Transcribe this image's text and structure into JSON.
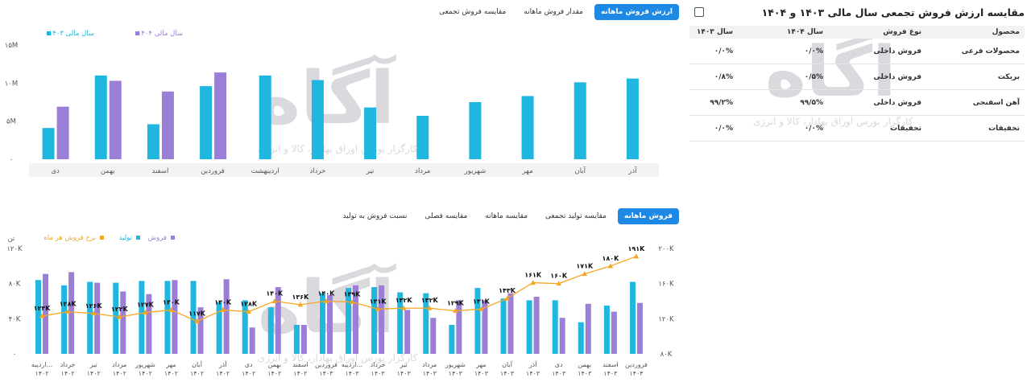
{
  "top_tabs": [
    {
      "label": "ارزش فروش ماهانه",
      "active": true
    },
    {
      "label": "مقدار فروش ماهانه",
      "active": false
    },
    {
      "label": "مقایسه فروش تجمعی",
      "active": false
    }
  ],
  "bottom_tabs": [
    {
      "label": "فروش ماهانه",
      "active": true
    },
    {
      "label": "مقایسه تولید تجمعی",
      "active": false
    },
    {
      "label": "مقایسه ماهانه",
      "active": false
    },
    {
      "label": "مقایسه فصلی",
      "active": false
    },
    {
      "label": "نسبت فروش به تولید",
      "active": false
    }
  ],
  "table": {
    "title": "مقایسه ارزش فروش تجمعی سال مالی ۱۴۰۳ و ۱۴۰۴",
    "headers": [
      "محصول",
      "نوع فروش",
      "سال ۱۴۰۴",
      "سال ۱۴۰۳"
    ],
    "rows": [
      [
        "محصولات فرعی",
        "فروش داخلی",
        "۰/۰%",
        "۰/۰%"
      ],
      [
        "بریکت",
        "فروش داخلی",
        "۰/۵%",
        "۰/۸%"
      ],
      [
        "آهن اسفنجی",
        "فروش داخلی",
        "۹۹/۵%",
        "۹۹/۲%"
      ],
      [
        "تخفیفات",
        "تخفیفات",
        "۰/۰%",
        "۰/۰%"
      ]
    ]
  },
  "watermark": {
    "logo": "آگاه",
    "tagline": "کارگزار بورس اوراق بهادار، کالا و انرژی"
  },
  "colors": {
    "cyan": "#1fb6e0",
    "purple": "#9b7fd6",
    "orange": "#f5a623",
    "active_tab": "#1e88e5"
  },
  "chart_data": [
    {
      "type": "bar",
      "categories": [
        "دی",
        "بهمن",
        "اسفند",
        "فروردین",
        "اردیبهشت",
        "خرداد",
        "تیر",
        "مرداد",
        "شهریور",
        "مهر",
        "آبان",
        "آذر"
      ],
      "series": [
        {
          "name": "سال مالی ۱۴۰۳",
          "color": "#1fb6e0",
          "values": [
            4.1,
            11.0,
            4.6,
            9.6,
            11.0,
            10.4,
            6.8,
            5.7,
            7.5,
            8.3,
            10.1,
            10.6
          ]
        },
        {
          "name": "سال مالی ۱۴۰۴",
          "color": "#9b7fd6",
          "values": [
            6.9,
            10.3,
            8.9,
            11.4,
            null,
            null,
            null,
            null,
            null,
            null,
            null,
            null
          ]
        }
      ],
      "ylim": [
        0,
        15
      ],
      "yticks": [
        "۰",
        "۵M",
        "۱۰M",
        "۱۵M"
      ],
      "grid": false,
      "legend_position": "top-left"
    },
    {
      "type": "bar",
      "categories": [
        {
          "month": "اردیبه...",
          "year": "۱۴۰۲"
        },
        {
          "month": "خرداد",
          "year": "۱۴۰۲"
        },
        {
          "month": "تیر",
          "year": "۱۴۰۲"
        },
        {
          "month": "مرداد",
          "year": "۱۴۰۲"
        },
        {
          "month": "شهریور",
          "year": "۱۴۰۲"
        },
        {
          "month": "مهر",
          "year": "۱۴۰۲"
        },
        {
          "month": "آبان",
          "year": "۱۴۰۲"
        },
        {
          "month": "آذر",
          "year": "۱۴۰۲"
        },
        {
          "month": "دی",
          "year": "۱۴۰۲"
        },
        {
          "month": "بهمن",
          "year": "۱۴۰۲"
        },
        {
          "month": "اسفند",
          "year": "۱۴۰۲"
        },
        {
          "month": "فروردین",
          "year": "۱۴۰۳"
        },
        {
          "month": "اردیبه...",
          "year": "۱۴۰۳"
        },
        {
          "month": "خرداد",
          "year": "۱۴۰۳"
        },
        {
          "month": "تیر",
          "year": "۱۴۰۳"
        },
        {
          "month": "مرداد",
          "year": "۱۴۰۳"
        },
        {
          "month": "شهریور",
          "year": "۱۴۰۳"
        },
        {
          "month": "مهر",
          "year": "۱۴۰۳"
        },
        {
          "month": "آبان",
          "year": "۱۴۰۳"
        },
        {
          "month": "آذر",
          "year": "۱۴۰۳"
        },
        {
          "month": "دی",
          "year": "۱۴۰۳"
        },
        {
          "month": "بهمن",
          "year": "۱۴۰۳"
        },
        {
          "month": "اسفند",
          "year": "۱۴۰۳"
        },
        {
          "month": "فروردین",
          "year": "۱۴۰۴"
        }
      ],
      "series": [
        {
          "name": "تولید",
          "color": "#1fb6e0",
          "axis": "left",
          "values": [
            84,
            78,
            82,
            81,
            83,
            83,
            83,
            59,
            61,
            53,
            33,
            69,
            75,
            76,
            70,
            69,
            33,
            75,
            63,
            61,
            61,
            36,
            55,
            82
          ]
        },
        {
          "name": "فروش",
          "color": "#9b7fd6",
          "axis": "left",
          "values": [
            91,
            93,
            81,
            71,
            68,
            84,
            53,
            85,
            30,
            76,
            33,
            67,
            78,
            78,
            50,
            41,
            61,
            61,
            69,
            65,
            41,
            57,
            48,
            58
          ]
        },
        {
          "name": "نرخ فروش هر ماه",
          "color": "#f5a623",
          "axis": "right",
          "type": "line",
          "values": [
            123,
            128,
            126,
            122,
            127,
            130,
            117,
            130,
            128,
            140,
            136,
            140,
            139,
            131,
            132,
            132,
            129,
            131,
            143,
            161,
            160,
            171,
            180,
            191
          ]
        }
      ],
      "line_labels": [
        "۱۲۳K",
        "۱۲۸K",
        "۱۲۶K",
        "۱۲۲K",
        "۱۲۷K",
        "۱۳۰K",
        "۱۱۷K",
        "۱۳۰K",
        "۱۲۸K",
        "۱۴۰K",
        "۱۳۶K",
        "۱۴۰K",
        "۱۳۹K",
        "۱۳۱K",
        "۱۳۲K",
        "۱۳۲K",
        "۱۲۹K",
        "۱۳۱K",
        "۱۴۳K",
        "۱۶۱K",
        "۱۶۰K",
        "۱۷۱K",
        "۱۸۰K",
        "۱۹۱K"
      ],
      "left_axis": {
        "label": "تن",
        "ylim": [
          0,
          120
        ],
        "ticks": [
          "۰",
          "۴۰K",
          "۸۰K",
          "۱۲۰K"
        ]
      },
      "right_axis": {
        "ylim": [
          80,
          200
        ],
        "ticks": [
          "۸۰K",
          "۱۲۰K",
          "۱۶۰K",
          "۲۰۰K"
        ]
      },
      "grid": false,
      "legend_position": "top-left"
    }
  ]
}
